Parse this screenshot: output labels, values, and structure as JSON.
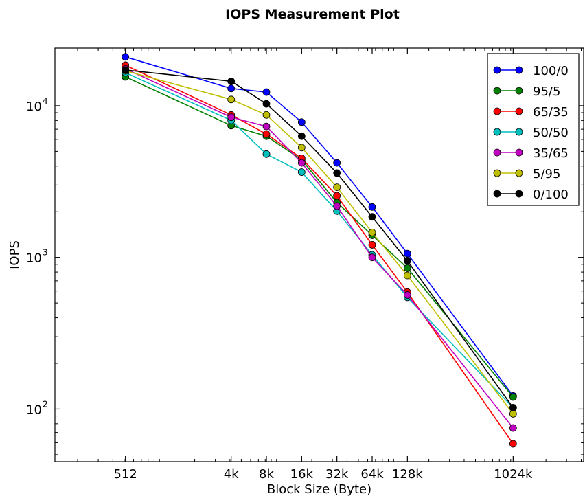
{
  "chart_data": {
    "type": "line",
    "title": "IOPS Measurement Plot",
    "xlabel": "Block Size (Byte)",
    "ylabel": "IOPS",
    "x_scale": "log2",
    "y_scale": "log",
    "ylim": [
      45,
      24000
    ],
    "grid": false,
    "legend_position": "top-right",
    "categories": [
      "512",
      "4k",
      "8k",
      "16k",
      "32k",
      "64k",
      "128k",
      "1024k"
    ],
    "x": [
      512,
      4096,
      8192,
      16384,
      32768,
      65536,
      131072,
      1048576
    ],
    "y_ticks": [
      {
        "value": 100,
        "base": "10",
        "exp": "2"
      },
      {
        "value": 1000,
        "base": "10",
        "exp": "3"
      },
      {
        "value": 10000,
        "base": "10",
        "exp": "4"
      }
    ],
    "series": [
      {
        "name": "100/0",
        "color": "#0000ff",
        "values": [
          21000,
          13000,
          12300,
          7800,
          4200,
          2150,
          1060,
          122
        ]
      },
      {
        "name": "95/5",
        "color": "#008000",
        "values": [
          15500,
          7400,
          6300,
          4400,
          2300,
          1400,
          850,
          120
        ]
      },
      {
        "name": "65/35",
        "color": "#ff0000",
        "values": [
          18500,
          8700,
          6500,
          4500,
          2550,
          1210,
          590,
          59
        ]
      },
      {
        "name": "50/50",
        "color": "#00bfbf",
        "values": [
          16500,
          8000,
          4800,
          3650,
          2020,
          1040,
          545,
          102
        ]
      },
      {
        "name": "35/65",
        "color": "#bf00bf",
        "values": [
          17500,
          8400,
          7300,
          4200,
          2180,
          1000,
          565,
          75
        ]
      },
      {
        "name": "5/95",
        "color": "#bfbf00",
        "values": [
          17000,
          11000,
          8700,
          5300,
          2900,
          1460,
          760,
          93
        ]
      },
      {
        "name": "0/100",
        "color": "#000000",
        "values": [
          17200,
          14500,
          10300,
          6300,
          3600,
          1850,
          950,
          102
        ]
      }
    ]
  }
}
